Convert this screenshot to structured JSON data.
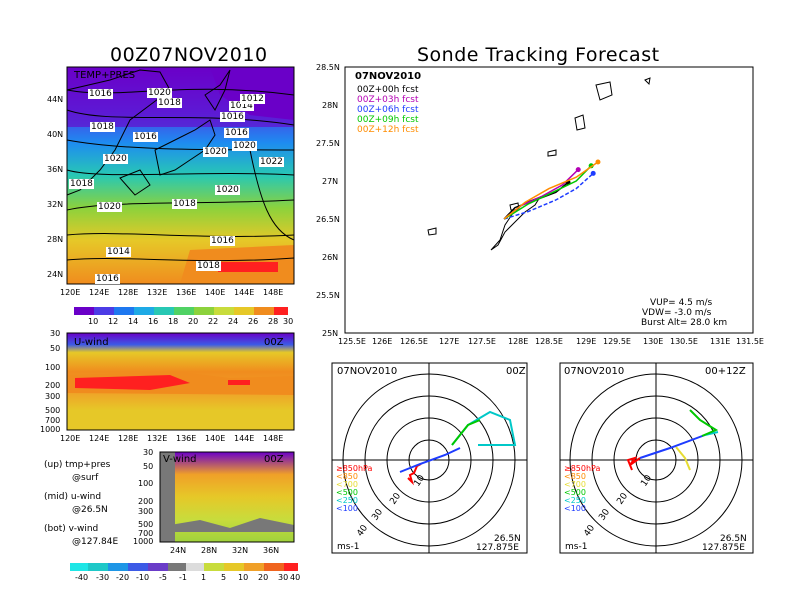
{
  "left": {
    "title": "00Z07NOV2010",
    "map_label": "TEMP+PRES",
    "isobars": [
      "1016",
      "1020",
      "1018",
      "1014",
      "1012",
      "1016",
      "1018",
      "1016",
      "1016",
      "1020",
      "1020",
      "1022",
      "1018",
      "1020",
      "1020",
      "1020",
      "1018",
      "1016",
      "1014",
      "1018",
      "1016"
    ],
    "lon_ticks": [
      "120E",
      "124E",
      "128E",
      "132E",
      "136E",
      "140E",
      "144E",
      "148E"
    ],
    "lat_ticks": [
      "44N",
      "40N",
      "36N",
      "32N",
      "28N",
      "24N"
    ],
    "temp_scale": [
      "10",
      "12",
      "14",
      "16",
      "18",
      "20",
      "22",
      "24",
      "26",
      "28",
      "30"
    ],
    "u_panel": {
      "label": "U-wind",
      "time": "00Z",
      "p_ticks": [
        "30",
        "50",
        "100",
        "200",
        "300",
        "500",
        "700",
        "1000"
      ],
      "lon_ticks": [
        "120E",
        "124E",
        "128E",
        "132E",
        "136E",
        "140E",
        "144E",
        "148E"
      ]
    },
    "v_panel": {
      "label": "V-wind",
      "time": "00Z",
      "p_ticks": [
        "30",
        "50",
        "100",
        "200",
        "300",
        "500",
        "700",
        "1000"
      ],
      "lat_ticks": [
        "24N",
        "28N",
        "32N",
        "36N"
      ]
    },
    "notes": [
      {
        "a": "(up) tmp+pres",
        "b": "@surf"
      },
      {
        "a": "(mid) u-wind",
        "b": "@26.5N"
      },
      {
        "a": "(bot) v-wind",
        "b": "@127.84E"
      }
    ],
    "wind_scale": [
      "-40",
      "-30",
      "-20",
      "-10",
      "-5",
      "-1",
      "1",
      "5",
      "10",
      "20",
      "30",
      "40"
    ]
  },
  "main": {
    "title": "Sonde Tracking Forecast",
    "date": "07NOV2010",
    "legend": [
      {
        "text": "00Z+00h fcst",
        "color": "#000000"
      },
      {
        "text": "00Z+03h fcst",
        "color": "#b400b4"
      },
      {
        "text": "00Z+06h fcst",
        "color": "#1e3cff"
      },
      {
        "text": "00Z+09h fcst",
        "color": "#00c800"
      },
      {
        "text": "00Z+12h fcst",
        "color": "#ff8c00"
      }
    ],
    "lon_ticks": [
      "125.5E",
      "126E",
      "126.5E",
      "127E",
      "127.5E",
      "128E",
      "128.5E",
      "129E",
      "129.5E",
      "130E",
      "130.5E",
      "131E",
      "131.5E"
    ],
    "lat_ticks": [
      "28.5N",
      "28N",
      "27.5N",
      "27N",
      "26.5N",
      "26N",
      "25.5N",
      "25N"
    ],
    "stats": [
      "VUP= 4.5 m/s",
      "VDW= -3.0 m/s",
      "Burst Alt= 28.0 km"
    ]
  },
  "hodographs": [
    {
      "date": "07NOV2010",
      "time": "00Z",
      "unit": "ms-1",
      "lat": "26.5N",
      "lon": "127.875E",
      "rings": [
        "10",
        "20",
        "30",
        "40"
      ],
      "legend": [
        {
          "text": "≥850hPa",
          "color": "#ff0000"
        },
        {
          "text": "<850",
          "color": "#ff8c00"
        },
        {
          "text": "<700",
          "color": "#e6dc32"
        },
        {
          "text": "<500",
          "color": "#00c800"
        },
        {
          "text": "<250",
          "color": "#00c8c8"
        },
        {
          "text": "<100",
          "color": "#1e3cff"
        }
      ]
    },
    {
      "date": "07NOV2010",
      "time": "00+12Z",
      "unit": "ms-1",
      "lat": "26.5N",
      "lon": "127.875E",
      "rings": [
        "10",
        "20",
        "30",
        "40"
      ],
      "legend": [
        {
          "text": "≥850hPa",
          "color": "#ff0000"
        },
        {
          "text": "<850",
          "color": "#ff8c00"
        },
        {
          "text": "<700",
          "color": "#e6dc32"
        },
        {
          "text": "<500",
          "color": "#00c800"
        },
        {
          "text": "<250",
          "color": "#00c8c8"
        },
        {
          "text": "<100",
          "color": "#1e3cff"
        }
      ]
    }
  ],
  "chart_data": [
    {
      "type": "line",
      "title": "Sonde Tracking Forecast",
      "xlim": [
        125.5,
        131.5
      ],
      "ylim": [
        25,
        28.5
      ],
      "series": [
        {
          "name": "00Z+00h fcst",
          "color": "#000000",
          "x": [
            127.84,
            128.0,
            128.3,
            128.6,
            128.78
          ],
          "y": [
            26.5,
            26.65,
            26.75,
            26.85,
            26.98
          ]
        },
        {
          "name": "00Z+03h fcst",
          "color": "#b400b4",
          "x": [
            127.84,
            128.1,
            128.4,
            128.7,
            128.93
          ],
          "y": [
            26.5,
            26.68,
            26.8,
            26.95,
            27.15
          ]
        },
        {
          "name": "00Z+06h fcst",
          "color": "#1e3cff",
          "x": [
            127.84,
            128.2,
            128.6,
            128.9,
            129.15
          ],
          "y": [
            26.5,
            26.6,
            26.75,
            26.9,
            27.1
          ]
        },
        {
          "name": "00Z+09h fcst",
          "color": "#00c800",
          "x": [
            127.84,
            128.2,
            128.55,
            128.9,
            129.12
          ],
          "y": [
            26.5,
            26.7,
            26.85,
            27.0,
            27.2
          ]
        },
        {
          "name": "00Z+12h fcst",
          "color": "#ff8c00",
          "x": [
            127.84,
            128.15,
            128.5,
            128.9,
            129.22
          ],
          "y": [
            26.5,
            26.72,
            26.9,
            27.05,
            27.25
          ]
        }
      ]
    }
  ]
}
